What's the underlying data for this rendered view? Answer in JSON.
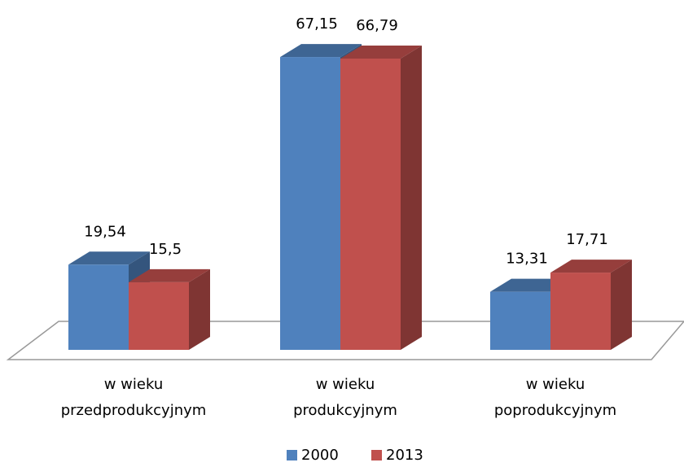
{
  "chart_data": {
    "type": "bar3d",
    "categories": [
      "w wieku przedprodukcyjnym",
      "w wieku produkcyjnym",
      "w wieku poprodukcyjnym"
    ],
    "series": [
      {
        "name": "2000",
        "color": "#4f81bd",
        "values": [
          19.54,
          67.15,
          13.31
        ],
        "value_labels": [
          "19,54",
          "67,15",
          "13,31"
        ]
      },
      {
        "name": "2013",
        "color": "#c0504d",
        "values": [
          15.5,
          66.79,
          17.71
        ],
        "value_labels": [
          "15,5",
          "66,79",
          "17,71"
        ]
      }
    ],
    "legend": "bottom"
  }
}
